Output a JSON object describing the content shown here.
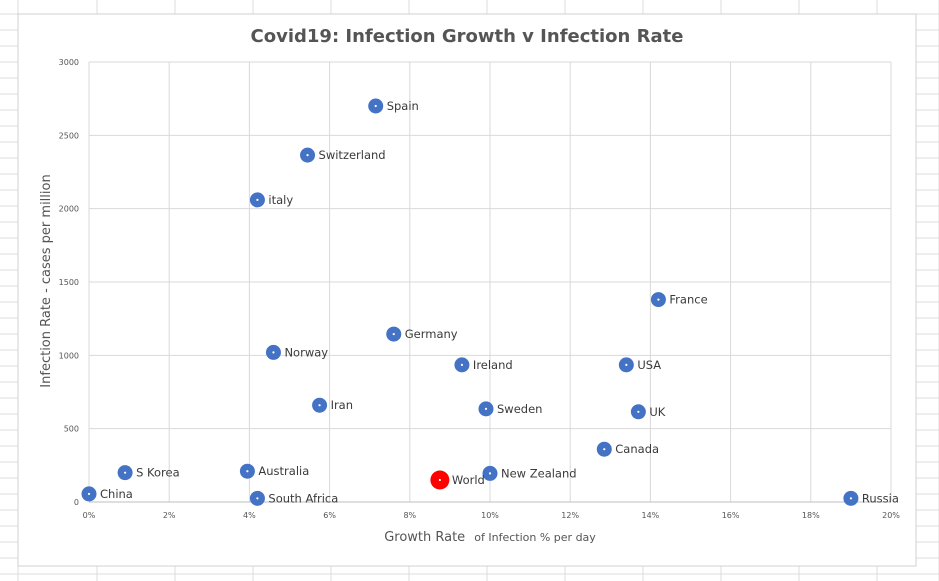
{
  "chart_data": {
    "type": "scatter",
    "title": "Covid19: Infection Growth v Infection Rate",
    "xlabel": {
      "main": "Growth Rate",
      "suffix": "of Infection % per day"
    },
    "ylabel": "Infection Rate - cases per million",
    "xlim": [
      0,
      20
    ],
    "ylim": [
      0,
      3000
    ],
    "x_ticks": [
      "0%",
      "2%",
      "4%",
      "6%",
      "8%",
      "10%",
      "12%",
      "14%",
      "16%",
      "18%",
      "20%"
    ],
    "y_ticks": [
      "0",
      "500",
      "1000",
      "1500",
      "2000",
      "2500",
      "3000"
    ],
    "grid": true,
    "colors": {
      "default_point": "#4472c4",
      "highlight_point": "#ff0000",
      "grid": "#d9d9d9",
      "text": "#555555"
    },
    "points": [
      {
        "label": "Spain",
        "x": 7.15,
        "y": 2700
      },
      {
        "label": "Switzerland",
        "x": 5.45,
        "y": 2365
      },
      {
        "label": "italy",
        "x": 4.2,
        "y": 2060
      },
      {
        "label": "France",
        "x": 14.2,
        "y": 1380
      },
      {
        "label": "Germany",
        "x": 7.6,
        "y": 1145
      },
      {
        "label": "Norway",
        "x": 4.6,
        "y": 1020
      },
      {
        "label": "Ireland",
        "x": 9.3,
        "y": 935
      },
      {
        "label": "USA",
        "x": 13.4,
        "y": 935
      },
      {
        "label": "Iran",
        "x": 5.75,
        "y": 660
      },
      {
        "label": "Sweden",
        "x": 9.9,
        "y": 635
      },
      {
        "label": "UK",
        "x": 13.7,
        "y": 615
      },
      {
        "label": "Canada",
        "x": 12.85,
        "y": 360
      },
      {
        "label": "S Korea",
        "x": 0.9,
        "y": 200
      },
      {
        "label": "Australia",
        "x": 3.95,
        "y": 210
      },
      {
        "label": "New Zealand",
        "x": 10.0,
        "y": 195
      },
      {
        "label": "World",
        "x": 8.75,
        "y": 150,
        "highlight": true
      },
      {
        "label": "China",
        "x": 0.0,
        "y": 55
      },
      {
        "label": "South Africa",
        "x": 4.2,
        "y": 25
      },
      {
        "label": "Russia",
        "x": 19.0,
        "y": 25
      }
    ]
  }
}
